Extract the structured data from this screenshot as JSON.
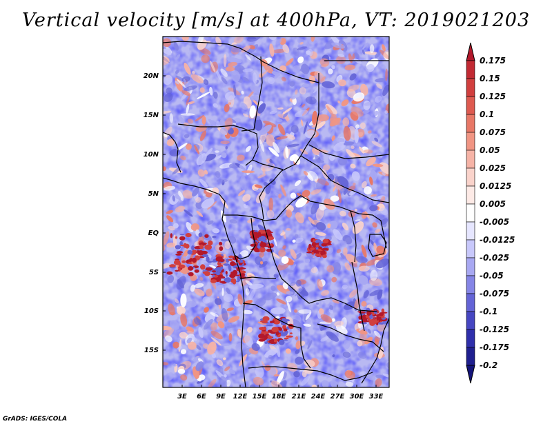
{
  "title": "Vertical velocity [m/s] at 400hPa, VT: 2019021203",
  "footer": "GrADS: IGES/COLA",
  "lat_labels": [
    "20N",
    "15N",
    "10N",
    "5N",
    "EQ",
    "5S",
    "10S",
    "15S"
  ],
  "lon_labels": [
    "3E",
    "6E",
    "9E",
    "12E",
    "15E",
    "18E",
    "21E",
    "24E",
    "27E",
    "30E",
    "33E"
  ],
  "colorbar": {
    "labels": [
      "0.175",
      "0.15",
      "0.125",
      "0.1",
      "0.075",
      "0.05",
      "0.025",
      "0.0125",
      "0.005",
      "-0.005",
      "-0.0125",
      "-0.025",
      "-0.05",
      "-0.075",
      "-0.1",
      "-0.125",
      "-0.175",
      "-0.2"
    ],
    "colors": [
      "#b2182b",
      "#c22a33",
      "#d13f3e",
      "#de5a50",
      "#e87766",
      "#f19583",
      "#f6b3a6",
      "#fad3cb",
      "#fdeae6",
      "#ffffff",
      "#e6e6ff",
      "#c8c8fb",
      "#a8a8f2",
      "#8585e6",
      "#6464d6",
      "#4646c2",
      "#2f2fab",
      "#1f1f8f",
      "#14147a"
    ]
  }
}
